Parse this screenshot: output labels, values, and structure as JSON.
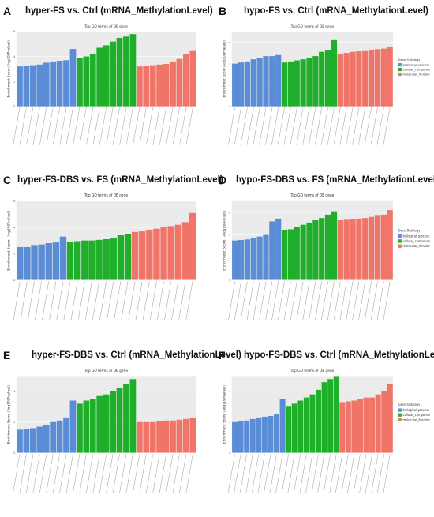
{
  "colors": {
    "biological_process": "#5B8DD6",
    "cellular_component": "#1FAF2B",
    "molecular_function": "#F07468",
    "panel_bg": "#EBEBEB"
  },
  "panels": [
    {
      "letter": "A",
      "title": "hyper-FS vs. Ctrl (mRNA_MethylationLevel)"
    },
    {
      "letter": "B",
      "title": "hypo-FS vs. Ctrl (mRNA_MethylationLevel)"
    },
    {
      "letter": "C",
      "title": "hyper-FS-DBS vs. FS (mRNA_MethylationLevel)"
    },
    {
      "letter": "D",
      "title": "hypo-FS-DBS vs. FS (mRNA_MethylationLevel)"
    },
    {
      "letter": "E",
      "title": "hyper-FS-DBS vs. Ctrl (mRNA_MethylationLevel)"
    },
    {
      "letter": "F",
      "title": "hypo-FS-DBS vs. Ctrl (mRNA_MethylationLevel)"
    }
  ],
  "chart_data": [
    {
      "type": "bar",
      "title": "Top GO terms of DE gene",
      "ylabel": "Enrichment Score (-log10(Pvalue))",
      "legend": null,
      "series": [
        {
          "name": "",
          "values": [
            3.2,
            3.25,
            3.3,
            3.35,
            3.5,
            3.6,
            3.65,
            3.7,
            4.6
          ]
        },
        {
          "name": "",
          "values": [
            3.9,
            4.0,
            4.2,
            4.7,
            4.9,
            5.2,
            5.5,
            5.6,
            5.8
          ]
        },
        {
          "name": "",
          "values": [
            3.2,
            3.25,
            3.3,
            3.35,
            3.4,
            3.6,
            3.8,
            4.2,
            4.5
          ]
        }
      ]
    },
    {
      "type": "bar",
      "title": "Top GO terms of DE gene",
      "ylabel": "Enrichment Score (-log10(Pvalue))",
      "legend": {
        "title": "Gene Ontology",
        "entries": [
          "biological_process",
          "cellular_component",
          "molecular_function"
        ],
        "placement": "right"
      },
      "series": [
        {
          "name": "biological_process",
          "values": [
            4.0,
            4.1,
            4.2,
            4.4,
            4.55,
            4.7,
            4.7,
            4.8
          ]
        },
        {
          "name": "cellular_component",
          "values": [
            4.1,
            4.2,
            4.3,
            4.4,
            4.5,
            4.7,
            5.1,
            5.3,
            6.2
          ]
        },
        {
          "name": "molecular_function",
          "values": [
            4.9,
            5.0,
            5.1,
            5.2,
            5.25,
            5.3,
            5.35,
            5.4,
            5.6
          ]
        }
      ]
    },
    {
      "type": "bar",
      "title": "Top GO terms of DE gene",
      "ylabel": "Enrichment Score (-log10(Pvalue))",
      "legend": null,
      "series": [
        {
          "name": "",
          "values": [
            2.5,
            2.5,
            2.6,
            2.7,
            2.8,
            2.85,
            3.3
          ]
        },
        {
          "name": "",
          "values": [
            2.9,
            2.95,
            3.0,
            3.0,
            3.05,
            3.1,
            3.2,
            3.4,
            3.5
          ]
        },
        {
          "name": "",
          "values": [
            3.65,
            3.7,
            3.8,
            3.9,
            4.0,
            4.1,
            4.2,
            4.4,
            5.1
          ]
        }
      ]
    },
    {
      "type": "bar",
      "title": "Top GO terms of DE gene",
      "ylabel": "Enrichment Score (-log10(Pvalue))",
      "legend": {
        "title": "Gene Ontology",
        "entries": [
          "biological_process",
          "cellular_component",
          "molecular_function"
        ],
        "placement": "right"
      },
      "series": [
        {
          "name": "biological_process",
          "values": [
            3.5,
            3.55,
            3.6,
            3.7,
            3.85,
            4.0,
            5.2,
            5.45
          ]
        },
        {
          "name": "cellular_component",
          "values": [
            4.4,
            4.5,
            4.7,
            4.9,
            5.1,
            5.3,
            5.5,
            5.8,
            6.1
          ]
        },
        {
          "name": "molecular_function",
          "values": [
            5.3,
            5.35,
            5.4,
            5.45,
            5.5,
            5.6,
            5.7,
            5.8,
            6.2
          ]
        }
      ]
    },
    {
      "type": "bar",
      "title": "Top GO terms of DE gene",
      "ylabel": "Enrichment Score (-log10(Pvalue))",
      "legend": null,
      "series": [
        {
          "name": "",
          "values": [
            1.5,
            1.55,
            1.6,
            1.7,
            1.8,
            2.0,
            2.1,
            2.3,
            3.4
          ]
        },
        {
          "name": "",
          "values": [
            3.2,
            3.4,
            3.5,
            3.7,
            3.8,
            4.0,
            4.2,
            4.5,
            4.8
          ]
        },
        {
          "name": "",
          "values": [
            2.0,
            2.0,
            2.0,
            2.05,
            2.1,
            2.1,
            2.15,
            2.2,
            2.25
          ]
        }
      ]
    },
    {
      "type": "bar",
      "title": "Top GO terms of DE gene",
      "ylabel": "Enrichment Score (-log10(Pvalue))",
      "legend": {
        "title": "Gene Ontology",
        "entries": [
          "biological_process",
          "cellular_component",
          "molecular_function"
        ],
        "placement": "right"
      },
      "series": [
        {
          "name": "biological_process",
          "values": [
            2.0,
            2.05,
            2.1,
            2.2,
            2.3,
            2.35,
            2.4,
            2.5,
            3.5
          ]
        },
        {
          "name": "cellular_component",
          "values": [
            3.0,
            3.2,
            3.4,
            3.6,
            3.8,
            4.1,
            4.6,
            4.8,
            5.0
          ]
        },
        {
          "name": "molecular_function",
          "values": [
            3.3,
            3.35,
            3.4,
            3.5,
            3.6,
            3.6,
            3.8,
            4.0,
            4.5
          ]
        }
      ]
    }
  ]
}
